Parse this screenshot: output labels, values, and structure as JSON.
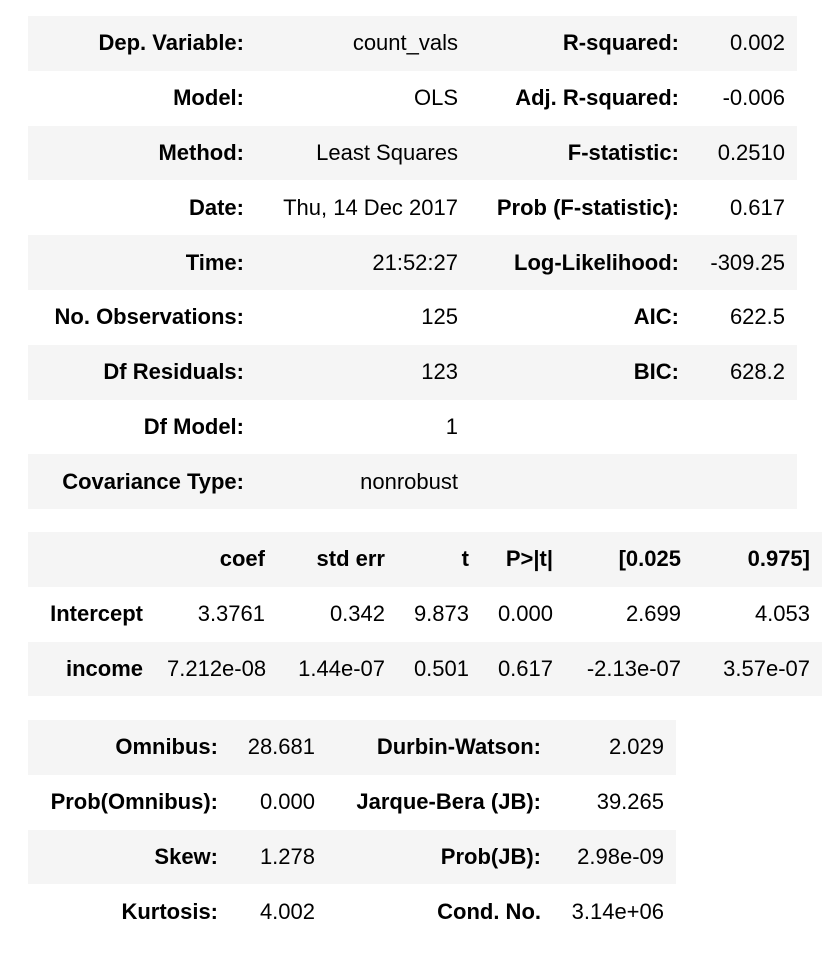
{
  "summary": {
    "rows": [
      {
        "l1": "Dep. Variable:",
        "v1": "count_vals",
        "l2": "R-squared:",
        "v2": "0.002"
      },
      {
        "l1": "Model:",
        "v1": "OLS",
        "l2": "Adj. R-squared:",
        "v2": "-0.006"
      },
      {
        "l1": "Method:",
        "v1": "Least Squares",
        "l2": "F-statistic:",
        "v2": "0.2510"
      },
      {
        "l1": "Date:",
        "v1": "Thu, 14 Dec 2017",
        "l2": "Prob (F-statistic):",
        "v2": "0.617"
      },
      {
        "l1": "Time:",
        "v1": "21:52:27",
        "l2": "Log-Likelihood:",
        "v2": "-309.25"
      },
      {
        "l1": "No. Observations:",
        "v1": "125",
        "l2": "AIC:",
        "v2": "622.5"
      },
      {
        "l1": "Df Residuals:",
        "v1": "123",
        "l2": "BIC:",
        "v2": "628.2"
      },
      {
        "l1": "Df Model:",
        "v1": "1",
        "l2": "",
        "v2": ""
      },
      {
        "l1": "Covariance Type:",
        "v1": "nonrobust",
        "l2": "",
        "v2": ""
      }
    ]
  },
  "coefficients": {
    "headers": [
      "",
      "coef",
      "std err",
      "t",
      "P>|t|",
      "[0.025",
      "0.975]"
    ],
    "rows": [
      {
        "name": "Intercept",
        "coef": "3.3761",
        "std_err": "0.342",
        "t": "9.873",
        "p": "0.000",
        "ci_low": "2.699",
        "ci_high": "4.053"
      },
      {
        "name": "income",
        "coef": "7.212e-08",
        "std_err": "1.44e-07",
        "t": "0.501",
        "p": "0.617",
        "ci_low": "-2.13e-07",
        "ci_high": "3.57e-07"
      }
    ]
  },
  "diagnostics": {
    "rows": [
      {
        "l1": "Omnibus:",
        "v1": "28.681",
        "l2": "Durbin-Watson:",
        "v2": "2.029"
      },
      {
        "l1": "Prob(Omnibus):",
        "v1": "0.000",
        "l2": "Jarque-Bera (JB):",
        "v2": "39.265"
      },
      {
        "l1": "Skew:",
        "v1": "1.278",
        "l2": "Prob(JB):",
        "v2": "2.98e-09"
      },
      {
        "l1": "Kurtosis:",
        "v1": "4.002",
        "l2": "Cond. No.",
        "v2": "3.14e+06"
      }
    ]
  },
  "colors": {
    "row_shade": "#f5f5f5",
    "background": "#ffffff",
    "text": "#000000"
  }
}
